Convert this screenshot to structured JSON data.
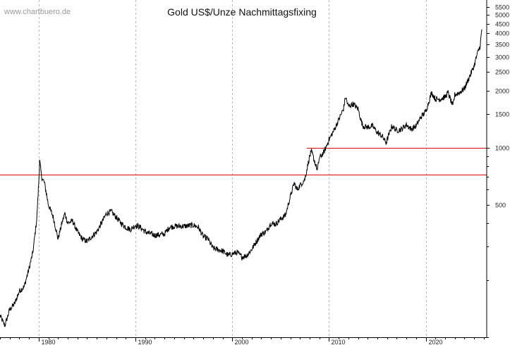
{
  "watermark": "www.chartbuero.de",
  "chart_data": {
    "type": "line",
    "title": "Gold US$/Unze Nachmittagsfixing",
    "xlabel": "",
    "ylabel": "",
    "y_scale": "log",
    "ylim": [
      100,
      6000
    ],
    "xlim": [
      1976.0,
      2026.3
    ],
    "grid": true,
    "y_ticks": [
      500,
      1000,
      1500,
      2000,
      2500,
      3000,
      3500,
      4000,
      4500,
      5000,
      5500
    ],
    "y_tick_labels": [
      "500",
      "1000",
      "1500",
      "2000",
      "2500",
      "3000",
      "3500",
      "4000",
      "4500",
      "5000",
      "5500"
    ],
    "x_ticks": [
      1980,
      1990,
      2000,
      2010,
      2020
    ],
    "x_tick_labels": [
      "1980",
      "1990",
      "2000",
      "2010",
      "2020"
    ],
    "reference_lines": [
      {
        "value": 720,
        "from": 1976.0,
        "color": "#dd0000"
      },
      {
        "value": 1000,
        "from": 2007.7,
        "color": "#dd0000"
      }
    ],
    "line_color": "#000000",
    "series": [
      {
        "x": [
          1976.0,
          1976.5,
          1977.0,
          1977.5,
          1978.0,
          1978.5,
          1979.0,
          1979.4,
          1979.8,
          1980.0,
          1980.1,
          1980.3,
          1980.6,
          1981.0,
          1981.5,
          1982.0,
          1982.4,
          1982.7,
          1983.0,
          1983.5,
          1984.0,
          1984.5,
          1985.0,
          1985.5,
          1986.0,
          1986.5,
          1987.0,
          1987.5,
          1988.0,
          1988.5,
          1989.0,
          1989.5,
          1990.0,
          1990.5,
          1991.0,
          1992.0,
          1993.0,
          1993.5,
          1994.0,
          1995.0,
          1996.0,
          1996.5,
          1997.0,
          1997.5,
          1998.0,
          1998.5,
          1999.0,
          1999.6,
          2000.0,
          2000.5,
          2001.0,
          2001.5,
          2002.0,
          2002.5,
          2003.0,
          2003.5,
          2004.0,
          2004.5,
          2005.0,
          2005.5,
          2006.0,
          2006.4,
          2006.7,
          2007.0,
          2007.5,
          2008.0,
          2008.2,
          2008.5,
          2008.8,
          2009.0,
          2009.5,
          2010.0,
          2010.5,
          2011.0,
          2011.5,
          2011.7,
          2012.0,
          2012.5,
          2013.0,
          2013.3,
          2013.5,
          2014.0,
          2014.5,
          2015.0,
          2015.5,
          2015.9,
          2016.5,
          2017.0,
          2017.5,
          2018.0,
          2018.5,
          2019.0,
          2019.5,
          2020.0,
          2020.6,
          2021.0,
          2021.5,
          2022.0,
          2022.3,
          2022.8,
          2023.0,
          2023.5,
          2024.0,
          2024.5,
          2025.0,
          2025.3,
          2025.6,
          2025.8
        ],
        "values": [
          130,
          115,
          140,
          150,
          175,
          185,
          230,
          280,
          420,
          650,
          850,
          700,
          650,
          500,
          430,
          330,
          400,
          450,
          400,
          410,
          360,
          330,
          320,
          340,
          360,
          400,
          450,
          460,
          430,
          400,
          380,
          370,
          390,
          380,
          360,
          345,
          350,
          380,
          385,
          385,
          390,
          380,
          340,
          330,
          295,
          290,
          285,
          270,
          275,
          280,
          265,
          270,
          290,
          320,
          350,
          360,
          400,
          395,
          420,
          440,
          550,
          650,
          600,
          630,
          680,
          900,
          950,
          850,
          760,
          880,
          950,
          1100,
          1230,
          1400,
          1600,
          1850,
          1650,
          1700,
          1600,
          1400,
          1300,
          1280,
          1300,
          1200,
          1150,
          1060,
          1300,
          1230,
          1250,
          1320,
          1250,
          1300,
          1450,
          1550,
          1950,
          1800,
          1800,
          1850,
          1950,
          1650,
          1900,
          1950,
          2050,
          2350,
          2700,
          3100,
          3400,
          4200
        ]
      }
    ]
  }
}
